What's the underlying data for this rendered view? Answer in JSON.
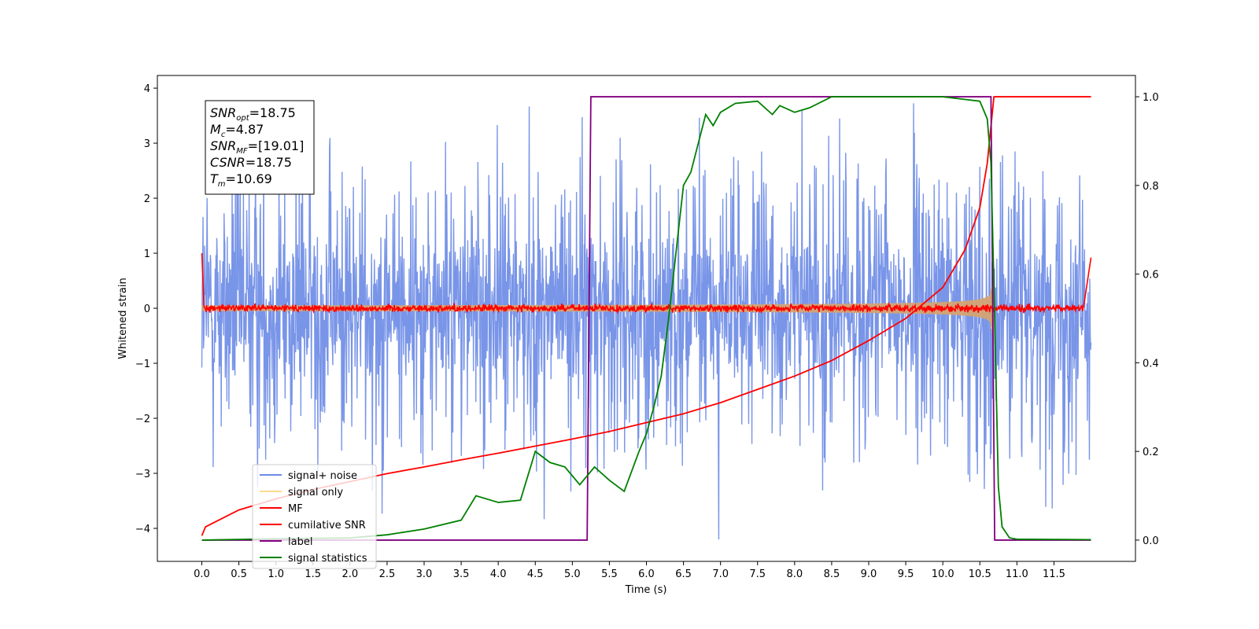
{
  "chart_data": {
    "type": "line",
    "xlabel": "Time (s)",
    "ylabel": "Whitened strain",
    "xlim": [
      -0.6,
      12.6
    ],
    "ylim": [
      -4.6,
      4.23
    ],
    "y2lim": [
      -0.048,
      1.048
    ],
    "x_ticks": [
      0.0,
      0.5,
      1.0,
      1.5,
      2.0,
      2.5,
      3.0,
      3.5,
      4.0,
      4.5,
      5.0,
      5.5,
      6.0,
      6.5,
      7.0,
      7.5,
      8.0,
      8.5,
      9.0,
      9.5,
      10.0,
      10.5,
      11.0,
      11.5
    ],
    "x_tick_labels": [
      "0.0",
      "0.5",
      "1.0",
      "1.5",
      "2.0",
      "2.5",
      "3.0",
      "3.5",
      "4.0",
      "4.5",
      "5.0",
      "5.5",
      "6.0",
      "6.5",
      "7.0",
      "7.5",
      "8.0",
      "8.5",
      "9.0",
      "9.5",
      "10.0",
      "10.5",
      "11.0",
      "11.5"
    ],
    "y_ticks": [
      4,
      3,
      2,
      1,
      0,
      -1,
      -2,
      -3,
      -4
    ],
    "y_tick_labels": [
      "4",
      "3",
      "2",
      "1",
      "0",
      "−1",
      "−2",
      "−3",
      "−4"
    ],
    "y2_ticks": [
      1.0,
      0.8,
      0.6,
      0.4,
      0.2,
      0.0
    ],
    "y2_tick_labels": [
      "1.0",
      "0.8",
      "0.6",
      "0.4",
      "0.2",
      "0.0"
    ],
    "colors": {
      "signal_noise": "#6a8ae6",
      "signal_only": "#d4a373",
      "mf": "#ff0000",
      "cumulative_snr": "#ff0000",
      "label": "#800080",
      "signal_statistics": "#008000"
    },
    "annotation": {
      "snr_opt": {
        "name": "SNR",
        "sub": "opt",
        "value": "=18.75"
      },
      "mc": {
        "name": "M",
        "sub": "c",
        "value": "=4.87"
      },
      "snr_mf": {
        "name": "SNR",
        "sub": "MF",
        "value": "=[19.01]"
      },
      "csnr": {
        "name": "CSNR",
        "sub": "",
        "value": "=18.75"
      },
      "tm": {
        "name": "T",
        "sub": "m",
        "value": "=10.69"
      }
    },
    "legend": {
      "placement": "lower-left",
      "entries": [
        "signal+ noise",
        "signal only",
        "MF",
        "cumilative SNR",
        "label",
        "signal statistics"
      ]
    },
    "series": {
      "signal_noise": {
        "t_start": 0.0,
        "t_end": 12.0,
        "envelope_high": 2.3,
        "envelope_low": -2.3,
        "peak_max": 3.85,
        "peak_min": -4.2
      },
      "signal_only": {
        "t_start": 0.0,
        "t_end": 10.69,
        "amp_start": 0.05,
        "amp_end": 1.2
      },
      "mf": {
        "t_start": 0.0,
        "t_end": 12.0,
        "start_value": 1.0,
        "end_value": 0.92,
        "band": 0.07
      },
      "cumulative_snr": {
        "x": [
          0.0,
          0.05,
          0.5,
          1.0,
          1.5,
          2.0,
          2.5,
          3.0,
          3.5,
          4.0,
          4.5,
          5.0,
          5.5,
          6.0,
          6.5,
          7.0,
          7.5,
          8.0,
          8.5,
          9.0,
          9.5,
          10.0,
          10.3,
          10.5,
          10.6,
          10.69,
          12.0
        ],
        "y": [
          0.01,
          0.03,
          0.068,
          0.093,
          0.114,
          0.132,
          0.15,
          0.165,
          0.181,
          0.196,
          0.212,
          0.228,
          0.245,
          0.265,
          0.285,
          0.31,
          0.34,
          0.37,
          0.405,
          0.45,
          0.5,
          0.57,
          0.655,
          0.75,
          0.85,
          1.0,
          1.0
        ]
      },
      "label": {
        "x": [
          0.0,
          5.2,
          5.25,
          10.65,
          10.7,
          12.0
        ],
        "y": [
          0.0,
          0.0,
          1.0,
          1.0,
          0.0,
          0.0
        ]
      },
      "signal_statistics": {
        "x": [
          0.0,
          1.0,
          2.0,
          2.5,
          3.0,
          3.5,
          3.7,
          3.9,
          4.0,
          4.3,
          4.5,
          4.7,
          4.9,
          5.1,
          5.3,
          5.5,
          5.7,
          5.9,
          6.0,
          6.1,
          6.2,
          6.3,
          6.4,
          6.5,
          6.6,
          6.8,
          6.9,
          7.0,
          7.2,
          7.5,
          7.7,
          7.8,
          8.0,
          8.2,
          8.5,
          9.0,
          9.5,
          10.0,
          10.5,
          10.6,
          10.65,
          10.7,
          10.75,
          10.8,
          10.9,
          11.0,
          12.0
        ],
        "y": [
          0.0,
          0.003,
          0.005,
          0.012,
          0.025,
          0.045,
          0.1,
          0.09,
          0.085,
          0.09,
          0.2,
          0.175,
          0.165,
          0.125,
          0.165,
          0.135,
          0.11,
          0.2,
          0.24,
          0.3,
          0.37,
          0.5,
          0.65,
          0.8,
          0.83,
          0.96,
          0.935,
          0.965,
          0.985,
          0.99,
          0.96,
          0.98,
          0.965,
          0.975,
          1.0,
          1.0,
          1.0,
          1.0,
          0.99,
          0.95,
          0.85,
          0.5,
          0.12,
          0.03,
          0.005,
          0.002,
          0.001
        ]
      }
    }
  }
}
